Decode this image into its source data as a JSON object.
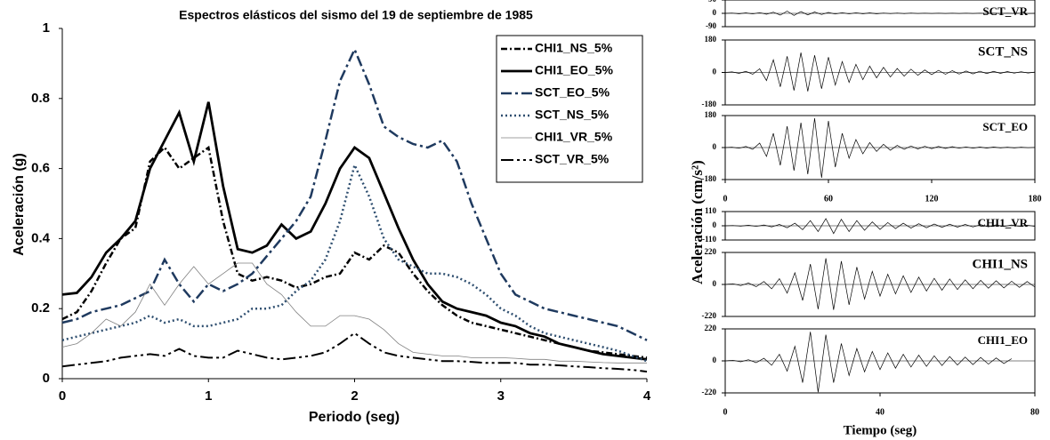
{
  "chart_data": [
    {
      "type": "line",
      "title": "Espectros elásticos del sismo del 19 de septiembre de 1985",
      "xlabel": "Periodo (seg)",
      "ylabel": "Aceleración (g)",
      "x": [
        0,
        0.1,
        0.2,
        0.3,
        0.4,
        0.5,
        0.6,
        0.7,
        0.8,
        0.9,
        1,
        1.1,
        1.2,
        1.3,
        1.4,
        1.5,
        1.6,
        1.7,
        1.8,
        1.9,
        2,
        2.1,
        2.2,
        2.3,
        2.4,
        2.5,
        2.6,
        2.7,
        2.8,
        2.9,
        3,
        3.1,
        3.2,
        3.3,
        3.4,
        3.5,
        3.6,
        3.7,
        3.8,
        3.9,
        4
      ],
      "xlim": [
        0,
        4
      ],
      "xticks": [
        0,
        1,
        2,
        3,
        4
      ],
      "ylim": [
        0,
        1
      ],
      "yticks": [
        0,
        0.2,
        0.4,
        0.6,
        0.8,
        1
      ],
      "legend": "top-right",
      "series": [
        {
          "name": "CHI1_NS_5%",
          "color": "#000000",
          "values": [
            0.17,
            0.19,
            0.25,
            0.33,
            0.4,
            0.43,
            0.62,
            0.66,
            0.6,
            0.63,
            0.66,
            0.45,
            0.3,
            0.28,
            0.29,
            0.28,
            0.26,
            0.27,
            0.29,
            0.3,
            0.36,
            0.34,
            0.38,
            0.36,
            0.3,
            0.25,
            0.21,
            0.18,
            0.16,
            0.15,
            0.14,
            0.13,
            0.12,
            0.11,
            0.1,
            0.09,
            0.08,
            0.075,
            0.07,
            0.065,
            0.06
          ]
        },
        {
          "name": "CHI1_EO_5%",
          "color": "#000000",
          "values": [
            0.24,
            0.245,
            0.29,
            0.36,
            0.4,
            0.45,
            0.6,
            0.68,
            0.76,
            0.62,
            0.79,
            0.55,
            0.37,
            0.36,
            0.38,
            0.44,
            0.4,
            0.42,
            0.5,
            0.6,
            0.66,
            0.63,
            0.53,
            0.43,
            0.34,
            0.27,
            0.22,
            0.2,
            0.19,
            0.18,
            0.16,
            0.15,
            0.13,
            0.12,
            0.1,
            0.09,
            0.08,
            0.07,
            0.065,
            0.06,
            0.055
          ]
        },
        {
          "name": "SCT_EO_5%",
          "color": "#1f3a5f",
          "values": [
            0.16,
            0.17,
            0.19,
            0.2,
            0.21,
            0.23,
            0.25,
            0.34,
            0.27,
            0.22,
            0.27,
            0.25,
            0.27,
            0.3,
            0.35,
            0.4,
            0.45,
            0.52,
            0.68,
            0.85,
            0.94,
            0.84,
            0.72,
            0.69,
            0.67,
            0.66,
            0.68,
            0.62,
            0.5,
            0.4,
            0.3,
            0.24,
            0.22,
            0.2,
            0.19,
            0.18,
            0.17,
            0.16,
            0.15,
            0.13,
            0.11
          ]
        },
        {
          "name": "SCT_NS_5%",
          "color": "#2f4f70",
          "values": [
            0.11,
            0.12,
            0.13,
            0.14,
            0.15,
            0.16,
            0.18,
            0.16,
            0.17,
            0.15,
            0.15,
            0.16,
            0.17,
            0.2,
            0.2,
            0.21,
            0.25,
            0.28,
            0.34,
            0.45,
            0.61,
            0.52,
            0.4,
            0.34,
            0.32,
            0.3,
            0.3,
            0.29,
            0.27,
            0.24,
            0.2,
            0.18,
            0.15,
            0.13,
            0.12,
            0.11,
            0.1,
            0.09,
            0.08,
            0.065,
            0.05
          ]
        },
        {
          "name": "CHI1_VR_5%",
          "color": "#808080",
          "values": [
            0.09,
            0.1,
            0.13,
            0.17,
            0.15,
            0.19,
            0.27,
            0.21,
            0.27,
            0.32,
            0.27,
            0.3,
            0.33,
            0.33,
            0.27,
            0.24,
            0.19,
            0.15,
            0.15,
            0.18,
            0.18,
            0.17,
            0.14,
            0.1,
            0.075,
            0.07,
            0.065,
            0.065,
            0.06,
            0.06,
            0.06,
            0.058,
            0.055,
            0.055,
            0.05,
            0.05,
            0.048,
            0.046,
            0.045,
            0.045,
            0.045
          ]
        },
        {
          "name": "SCT_VR_5%",
          "color": "#000000",
          "values": [
            0.035,
            0.04,
            0.045,
            0.05,
            0.06,
            0.065,
            0.07,
            0.065,
            0.085,
            0.065,
            0.06,
            0.06,
            0.08,
            0.07,
            0.06,
            0.055,
            0.06,
            0.065,
            0.075,
            0.1,
            0.13,
            0.1,
            0.075,
            0.065,
            0.06,
            0.055,
            0.05,
            0.05,
            0.048,
            0.045,
            0.045,
            0.045,
            0.04,
            0.04,
            0.038,
            0.035,
            0.033,
            0.03,
            0.028,
            0.025,
            0.02
          ]
        }
      ]
    },
    {
      "type": "line",
      "title": "SCT_VR",
      "xlim": [
        0,
        180
      ],
      "ylim": [
        -90,
        90
      ],
      "yticks": [
        90,
        0,
        -90
      ],
      "x": [
        0,
        4,
        8,
        12,
        16,
        20,
        24,
        28,
        32,
        36,
        40,
        44,
        48,
        52,
        56,
        60,
        64,
        68,
        72,
        76,
        80,
        84,
        88,
        92,
        96,
        100,
        104,
        108,
        112,
        116,
        120,
        124,
        128,
        132,
        136,
        140,
        144,
        148,
        152,
        156,
        160,
        164,
        168,
        172,
        176,
        180
      ],
      "series": [
        {
          "color": "#000000",
          "values": [
            0,
            2,
            -3,
            3,
            -4,
            5,
            -6,
            8,
            -12,
            15,
            -14,
            12,
            -10,
            9,
            -8,
            6,
            -5,
            5,
            -4,
            4,
            -3,
            3,
            -3,
            2,
            -2,
            2,
            -2,
            2,
            -1,
            1,
            -1,
            1,
            -1,
            1,
            -1,
            1,
            -1,
            1,
            -1,
            1,
            -1,
            1,
            -1,
            1,
            -1,
            0
          ]
        }
      ]
    },
    {
      "type": "line",
      "title": "SCT_NS",
      "xlim": [
        0,
        180
      ],
      "ylim": [
        -180,
        180
      ],
      "yticks": [
        180,
        0,
        -180
      ],
      "x": [
        0,
        4,
        8,
        12,
        16,
        20,
        24,
        28,
        32,
        36,
        40,
        44,
        48,
        52,
        56,
        60,
        64,
        68,
        72,
        76,
        80,
        84,
        88,
        92,
        96,
        100,
        104,
        108,
        112,
        116,
        120,
        124,
        128,
        132,
        136,
        140,
        144,
        148,
        152,
        156,
        160,
        164,
        168,
        172,
        176,
        180
      ],
      "series": [
        {
          "color": "#000000",
          "values": [
            0,
            3,
            -5,
            6,
            -10,
            20,
            -45,
            70,
            -80,
            90,
            -100,
            110,
            -105,
            95,
            -90,
            85,
            -70,
            60,
            -55,
            45,
            -40,
            35,
            -30,
            28,
            -25,
            22,
            -20,
            18,
            -16,
            14,
            -12,
            12,
            -10,
            10,
            -9,
            8,
            -8,
            7,
            -6,
            6,
            -5,
            5,
            -4,
            4,
            -3,
            2
          ]
        }
      ]
    },
    {
      "type": "line",
      "title": "SCT_EO",
      "xlim": [
        0,
        180
      ],
      "xticks": [
        0,
        60,
        120,
        180
      ],
      "ylim": [
        -180,
        180
      ],
      "yticks": [
        180,
        0,
        -180
      ],
      "x": [
        0,
        4,
        8,
        12,
        16,
        20,
        24,
        28,
        32,
        36,
        40,
        44,
        48,
        52,
        56,
        60,
        64,
        68,
        72,
        76,
        80,
        84,
        88,
        92,
        96,
        100,
        104,
        108,
        112,
        116,
        120,
        124,
        128,
        132,
        136,
        140,
        144,
        148,
        152,
        156,
        160,
        164,
        168,
        172,
        176,
        180
      ],
      "series": [
        {
          "color": "#000000",
          "values": [
            0,
            2,
            -4,
            6,
            -10,
            25,
            -50,
            80,
            -100,
            120,
            -130,
            140,
            -150,
            165,
            -170,
            150,
            -110,
            80,
            -60,
            45,
            -35,
            28,
            -22,
            18,
            -15,
            12,
            -10,
            9,
            -8,
            7,
            -6,
            6,
            -5,
            5,
            -4,
            4,
            -4,
            3,
            -3,
            3,
            -2,
            2,
            -2,
            2,
            -1,
            1
          ]
        }
      ]
    },
    {
      "type": "line",
      "title": "CHI1_VR",
      "ylabel": "Aceleración (cm/s²)",
      "xlim": [
        0,
        80
      ],
      "ylim": [
        -110,
        110
      ],
      "yticks": [
        110,
        0,
        -110
      ],
      "x": [
        0,
        2,
        4,
        6,
        8,
        10,
        12,
        14,
        16,
        18,
        20,
        22,
        24,
        26,
        28,
        30,
        32,
        34,
        36,
        38,
        40,
        42,
        44,
        46,
        48,
        50,
        52,
        54,
        56,
        58,
        60,
        62,
        64,
        66,
        68,
        70,
        72,
        74,
        76,
        78,
        80
      ],
      "series": [
        {
          "color": "#000000",
          "values": [
            0,
            2,
            -3,
            4,
            -5,
            6,
            -8,
            10,
            -15,
            20,
            -30,
            40,
            -45,
            55,
            -60,
            50,
            -45,
            40,
            -35,
            30,
            -28,
            25,
            -22,
            20,
            -18,
            16,
            -15,
            14,
            -12,
            12,
            -10,
            10,
            -9,
            8,
            -8,
            7,
            -6,
            6,
            -5,
            5,
            -4
          ]
        }
      ]
    },
    {
      "type": "line",
      "title": "CHI1_NS",
      "xlim": [
        0,
        80
      ],
      "ylim": [
        -220,
        220
      ],
      "yticks": [
        220,
        0,
        -220
      ],
      "x": [
        0,
        2,
        4,
        6,
        8,
        10,
        12,
        14,
        16,
        18,
        20,
        22,
        24,
        26,
        28,
        30,
        32,
        34,
        36,
        38,
        40,
        42,
        44,
        46,
        48,
        50,
        52,
        54,
        56,
        58,
        60,
        62,
        64,
        66,
        68,
        70,
        72,
        74,
        76,
        78,
        80
      ],
      "series": [
        {
          "color": "#000000",
          "values": [
            0,
            5,
            -8,
            10,
            -15,
            20,
            -30,
            40,
            -60,
            80,
            -110,
            140,
            -170,
            180,
            -175,
            160,
            -140,
            120,
            -100,
            90,
            -80,
            70,
            -65,
            60,
            -55,
            50,
            -45,
            42,
            -40,
            38,
            -35,
            32,
            -30,
            28,
            -26,
            25,
            -24,
            22,
            -20,
            20,
            -18
          ]
        }
      ]
    },
    {
      "type": "line",
      "title": "CHI1_EO",
      "xlabel": "Tiempo (seg)",
      "xlim": [
        0,
        80
      ],
      "xticks": [
        0,
        40,
        80
      ],
      "ylim": [
        -220,
        220
      ],
      "yticks": [
        220,
        0,
        -220
      ],
      "x": [
        0,
        2,
        4,
        6,
        8,
        10,
        12,
        14,
        16,
        18,
        20,
        22,
        24,
        26,
        28,
        30,
        32,
        34,
        36,
        38,
        40,
        42,
        44,
        46,
        48,
        50,
        52,
        54,
        56,
        58,
        60,
        62,
        64,
        66,
        68,
        70,
        72,
        74
      ],
      "series": [
        {
          "color": "#000000",
          "values": [
            0,
            4,
            -6,
            8,
            -12,
            18,
            -30,
            45,
            -70,
            100,
            -150,
            200,
            -215,
            180,
            -150,
            120,
            -100,
            85,
            -75,
            65,
            -60,
            55,
            -50,
            45,
            -42,
            40,
            -38,
            35,
            -32,
            30,
            -28,
            26,
            -25,
            24,
            -22,
            20,
            -18,
            15
          ]
        }
      ]
    }
  ]
}
